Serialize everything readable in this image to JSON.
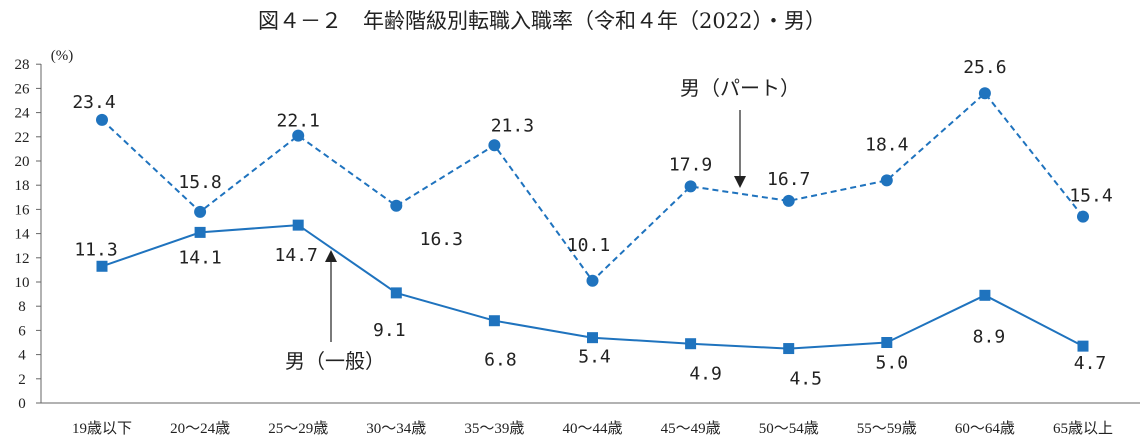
{
  "chart_data": {
    "type": "line",
    "title": "図４－２　年齢階級別転職入職率（令和４年（2022）・男）",
    "y_unit": "(%)",
    "ylim": [
      0,
      28
    ],
    "y_ticks": [
      "0",
      "2",
      "4",
      "6",
      "8",
      "10",
      "12",
      "14",
      "16",
      "18",
      "20",
      "22",
      "24",
      "26",
      "28"
    ],
    "categories": [
      "19歳以下",
      "20～24歳",
      "25～29歳",
      "30～34歳",
      "35～39歳",
      "40～44歳",
      "45～49歳",
      "50～54歳",
      "55～59歳",
      "60～64歳",
      "65歳以上"
    ],
    "grid": false,
    "series": [
      {
        "name": "男（パート）",
        "style": "dashed",
        "marker": "circle",
        "color": "#1f73be",
        "values": [
          23.4,
          15.8,
          22.1,
          16.3,
          21.3,
          10.1,
          17.9,
          16.7,
          18.4,
          25.6,
          15.4
        ],
        "labels": [
          "23.4",
          "15.8",
          "22.1",
          "16.3",
          "21.3",
          "10.1",
          "17.9",
          "16.7",
          "18.4",
          "25.6",
          "15.4"
        ]
      },
      {
        "name": "男（一般）",
        "style": "solid",
        "marker": "square",
        "color": "#1f73be",
        "values": [
          11.3,
          14.1,
          14.7,
          9.1,
          6.8,
          5.4,
          4.9,
          4.5,
          5.0,
          8.9,
          4.7
        ],
        "labels": [
          "11.3",
          "14.1",
          "14.7",
          "9.1",
          "6.8",
          "5.4",
          "4.9",
          "4.5",
          "5.0",
          "8.9",
          "4.7"
        ]
      }
    ],
    "annotations": [
      {
        "text": "男（パート）",
        "series": 0
      },
      {
        "text": "男（一般）",
        "series": 1
      }
    ]
  }
}
